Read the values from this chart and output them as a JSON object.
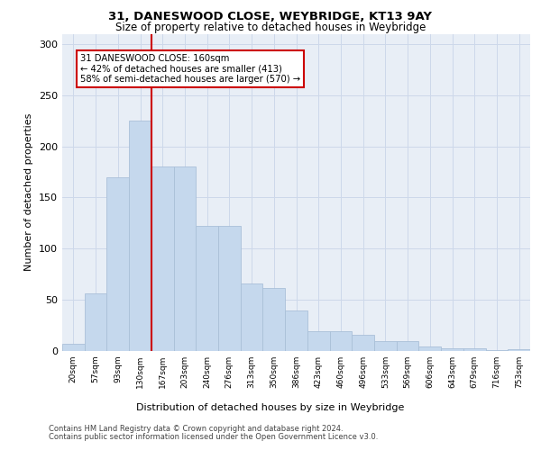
{
  "title1": "31, DANESWOOD CLOSE, WEYBRIDGE, KT13 9AY",
  "title2": "Size of property relative to detached houses in Weybridge",
  "xlabel": "Distribution of detached houses by size in Weybridge",
  "ylabel": "Number of detached properties",
  "bar_values": [
    7,
    56,
    170,
    225,
    180,
    180,
    122,
    122,
    66,
    62,
    40,
    19,
    19,
    16,
    10,
    10,
    4,
    3,
    3,
    1,
    2
  ],
  "bin_labels": [
    "20sqm",
    "57sqm",
    "93sqm",
    "130sqm",
    "167sqm",
    "203sqm",
    "240sqm",
    "276sqm",
    "313sqm",
    "350sqm",
    "386sqm",
    "423sqm",
    "460sqm",
    "496sqm",
    "533sqm",
    "569sqm",
    "606sqm",
    "643sqm",
    "679sqm",
    "716sqm",
    "753sqm"
  ],
  "bar_color": "#c5d8ed",
  "bar_edge_color": "#aac0d8",
  "vline_x_index": 4,
  "vline_color": "#cc0000",
  "annotation_text": "31 DANESWOOD CLOSE: 160sqm\n← 42% of detached houses are smaller (413)\n58% of semi-detached houses are larger (570) →",
  "annotation_box_color": "#ffffff",
  "annotation_box_edge": "#cc0000",
  "grid_color": "#cdd8ea",
  "bg_color": "#e8eef6",
  "footer1": "Contains HM Land Registry data © Crown copyright and database right 2024.",
  "footer2": "Contains public sector information licensed under the Open Government Licence v3.0.",
  "ylim": [
    0,
    310
  ],
  "yticks": [
    0,
    50,
    100,
    150,
    200,
    250,
    300
  ]
}
